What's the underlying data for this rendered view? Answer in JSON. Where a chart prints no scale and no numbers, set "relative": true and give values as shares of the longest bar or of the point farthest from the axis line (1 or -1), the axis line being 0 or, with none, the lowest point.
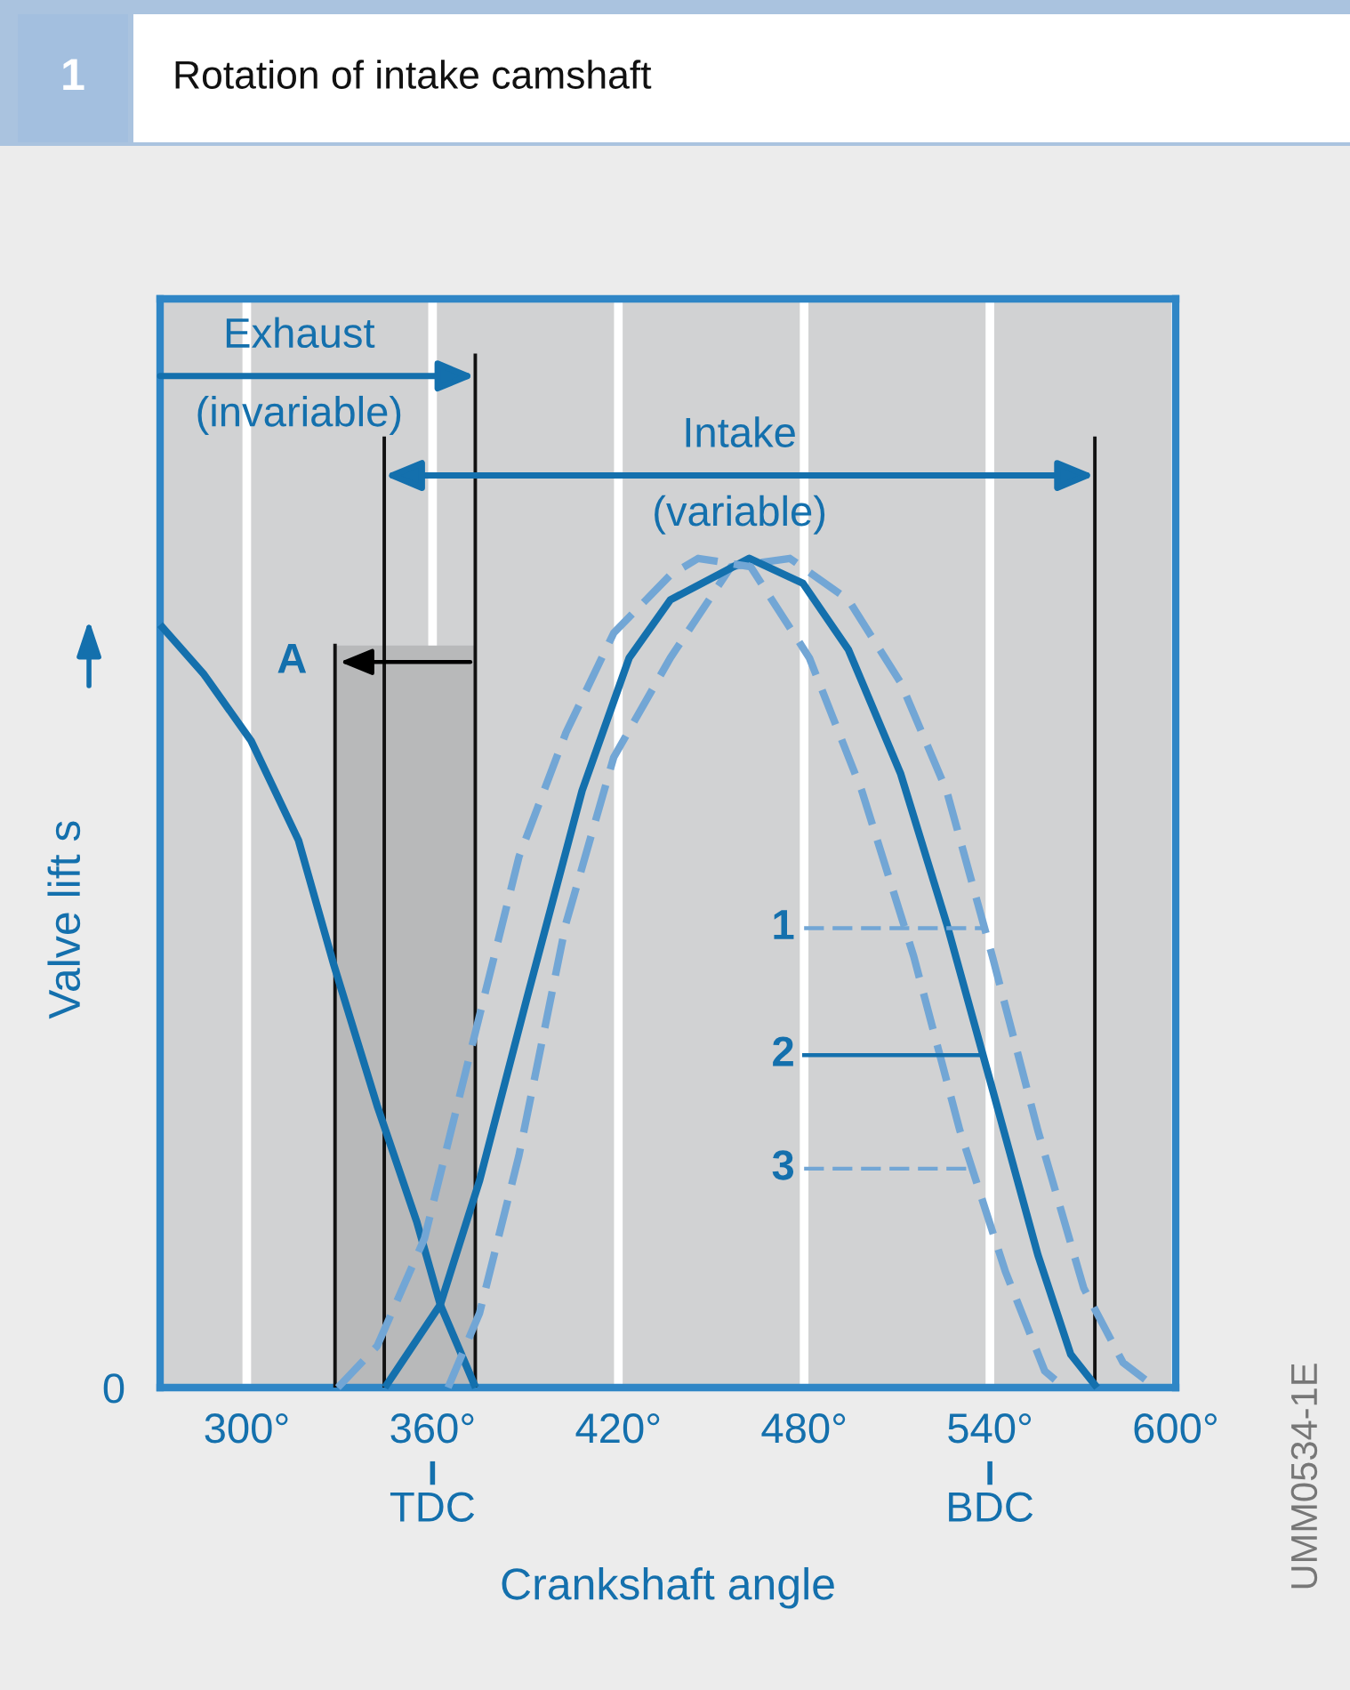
{
  "chart_data": {
    "type": "line",
    "title": "Rotation of intake camshaft",
    "xlabel": "Crankshaft angle",
    "ylabel": "Valve lift s",
    "relative": true,
    "xlim": [
      272,
      600
    ],
    "xticks": [
      {
        "value": 300,
        "label": "300°"
      },
      {
        "value": 360,
        "label": "360°\nTDC"
      },
      {
        "value": 420,
        "label": "420°"
      },
      {
        "value": 480,
        "label": "480°"
      },
      {
        "value": 540,
        "label": "540°\nBDC"
      },
      {
        "value": 600,
        "label": "600°"
      }
    ],
    "grid": "x",
    "legend": "center",
    "series": [
      {
        "color": "#1470ad",
        "line_style": "solid",
        "x": [
          272,
          286.2,
          301.4,
          316.7,
          328.1,
          342.1,
          354.9,
          362.5,
          373.9
        ],
        "values": [
          0.92,
          0.86,
          0.78,
          0.66,
          0.51,
          0.34,
          0.2,
          0.1,
          0
        ]
      },
      {
        "name": "1",
        "color": "#72a6d5",
        "line_style": "dashed",
        "x": [
          365.0,
          375.2,
          387.9,
          403.1,
          418.5,
          436.8,
          456.4,
          475.4,
          494.3,
          511.2,
          526.0,
          540.8,
          555.5,
          570.3,
          583.0,
          593.5
        ],
        "values": [
          0,
          0.09,
          0.28,
          0.56,
          0.76,
          0.88,
          0.99,
          1.0,
          0.95,
          0.85,
          0.72,
          0.52,
          0.31,
          0.12,
          0.03,
          0
        ]
      },
      {
        "name": "2",
        "color": "#1470ad",
        "line_style": "solid",
        "x": [
          344.6,
          362.5,
          375.2,
          390.5,
          408.3,
          423.5,
          436.8,
          462.3,
          479.6,
          494.3,
          511.2,
          526.0,
          540.8,
          555.5,
          566.1,
          574.6
        ],
        "values": [
          0,
          0.1,
          0.25,
          0.47,
          0.72,
          0.88,
          0.95,
          1.0,
          0.97,
          0.89,
          0.74,
          0.56,
          0.36,
          0.16,
          0.04,
          0
        ]
      },
      {
        "name": "3",
        "color": "#72a6d5",
        "line_style": "dashed",
        "x": [
          329.4,
          342.1,
          357.4,
          372.6,
          387.9,
          403.1,
          418.5,
          436.8,
          445.8,
          462.7,
          481.7,
          498.6,
          515.4,
          530.3,
          545.0,
          557.7,
          564.0
        ],
        "values": [
          0,
          0.05,
          0.18,
          0.41,
          0.64,
          0.79,
          0.91,
          0.98,
          1.0,
          0.99,
          0.88,
          0.72,
          0.52,
          0.31,
          0.14,
          0.02,
          0
        ]
      }
    ],
    "ref_lines": [
      {
        "axis": "x",
        "value": 328.5,
        "color": "#111111"
      },
      {
        "axis": "x",
        "value": 344.4,
        "color": "#111111"
      },
      {
        "axis": "x",
        "value": 373.8,
        "color": "#111111"
      },
      {
        "axis": "x",
        "value": 573.9,
        "color": "#111111"
      }
    ],
    "bands": [
      {
        "axis": "x",
        "from": 328.5,
        "to": 373.8,
        "label": "A",
        "color": "#b8b9ba"
      }
    ],
    "annotations": [
      "1",
      "UMM0534-1E",
      "0",
      {
        "text": "Exhaust\n(invariable)",
        "x": 373.8,
        "y": 1.22
      },
      "Intake\n(variable)"
    ]
  }
}
